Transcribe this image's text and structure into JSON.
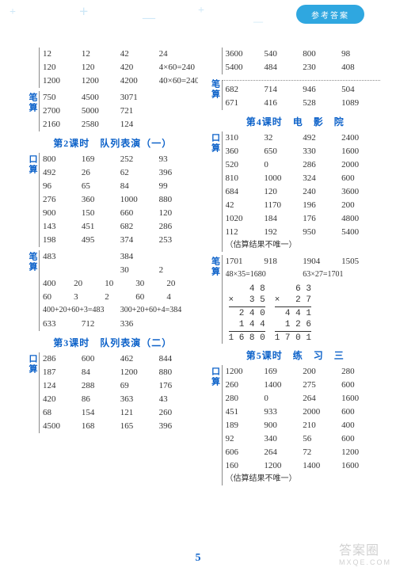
{
  "header": {
    "tag": "参考答案",
    "decor": {
      "plus": "+",
      "dash": "—"
    }
  },
  "page_number": "5",
  "watermark": {
    "main": "答案圈",
    "sub": "MXQE.COM"
  },
  "left": {
    "b1": {
      "label": "",
      "rows": [
        [
          "12",
          "12",
          "42",
          "24"
        ],
        [
          "120",
          "120",
          "420",
          "4×60=240"
        ],
        [
          "1200",
          "1200",
          "4200",
          "40×60=2400"
        ]
      ]
    },
    "b2": {
      "label": "笔算",
      "rows": [
        [
          "750",
          "4500",
          "3071",
          ""
        ],
        [
          "2700",
          "5000",
          "721",
          ""
        ],
        [
          "2160",
          "2580",
          "124",
          ""
        ]
      ]
    },
    "s2": {
      "title": "第2课时　队列表演（一）"
    },
    "b3": {
      "label": "口算",
      "rows": [
        [
          "800",
          "169",
          "252",
          "93"
        ],
        [
          "492",
          "26",
          "62",
          "396"
        ],
        [
          "96",
          "65",
          "84",
          "99"
        ],
        [
          "276",
          "360",
          "1000",
          "880"
        ],
        [
          "900",
          "150",
          "660",
          "120"
        ],
        [
          "143",
          "451",
          "682",
          "286"
        ],
        [
          "198",
          "495",
          "374",
          "253"
        ]
      ]
    },
    "b4": {
      "label": "笔算",
      "rowsA": [
        [
          "483",
          "",
          "384",
          ""
        ],
        [
          "",
          "",
          "30",
          "2"
        ],
        [
          "400",
          "20",
          "10",
          "30",
          "20"
        ],
        [
          "60",
          "3",
          "2",
          "60",
          "4"
        ]
      ],
      "sums": [
        "400+20+60+3=483",
        "300+20+60+4=384"
      ],
      "last": [
        "633",
        "712",
        "336",
        ""
      ]
    },
    "s3": {
      "title": "第3课时　队列表演（二）"
    },
    "b5": {
      "label": "口算",
      "rows": [
        [
          "286",
          "600",
          "462",
          "844"
        ],
        [
          "187",
          "84",
          "1200",
          "880"
        ],
        [
          "124",
          "288",
          "69",
          "176"
        ],
        [
          "420",
          "86",
          "363",
          "43"
        ],
        [
          "68",
          "154",
          "121",
          "260"
        ],
        [
          "4500",
          "168",
          "165",
          "396"
        ]
      ]
    }
  },
  "right": {
    "b1": {
      "label": "",
      "rows": [
        [
          "3600",
          "540",
          "800",
          "98"
        ],
        [
          "5400",
          "484",
          "230",
          "408"
        ]
      ]
    },
    "b2": {
      "label": "笔算",
      "rows": [
        [
          "682",
          "714",
          "946",
          "504"
        ],
        [
          "671",
          "416",
          "528",
          "1089"
        ]
      ]
    },
    "s4": {
      "title": "第4课时　电　影　院"
    },
    "b3": {
      "label": "口算",
      "rows": [
        [
          "310",
          "32",
          "492",
          "2400"
        ],
        [
          "360",
          "650",
          "330",
          "1600"
        ],
        [
          "520",
          "0",
          "286",
          "2000"
        ],
        [
          "810",
          "1000",
          "324",
          "600"
        ],
        [
          "684",
          "120",
          "240",
          "3600"
        ],
        [
          "42",
          "1170",
          "196",
          "200"
        ],
        [
          "1020",
          "184",
          "176",
          "4800"
        ],
        [
          "112",
          "192",
          "950",
          "5400"
        ]
      ],
      "note": "（估算结果不唯一）"
    },
    "b4": {
      "label": "笔算",
      "topRow": [
        "1701",
        "918",
        "1904",
        "1505"
      ],
      "eqs": [
        "48×35=1680",
        "63×27=1701"
      ],
      "multA": [
        "    4 8",
        "×   3 5",
        "  2 4 0",
        "1 4 4",
        "1 6 8 0"
      ],
      "multB": [
        "    6 3",
        "×   2 7",
        "  4 4 1",
        "1 2 6",
        "1 7 0 1"
      ]
    },
    "s5": {
      "title": "第5课时　练　习　三"
    },
    "b5": {
      "label": "口算",
      "rows": [
        [
          "1200",
          "169",
          "200",
          "280"
        ],
        [
          "260",
          "1400",
          "275",
          "600"
        ],
        [
          "280",
          "0",
          "264",
          "1600"
        ],
        [
          "451",
          "933",
          "2000",
          "600"
        ],
        [
          "189",
          "900",
          "210",
          "400"
        ],
        [
          "92",
          "340",
          "56",
          "600"
        ],
        [
          "606",
          "264",
          "72",
          "1200"
        ],
        [
          "160",
          "1200",
          "1400",
          "1600"
        ]
      ],
      "note": "（估算结果不唯一）"
    }
  }
}
